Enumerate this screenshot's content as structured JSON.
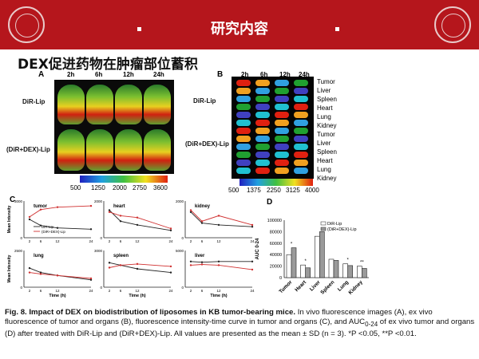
{
  "header": {
    "title": "研究内容",
    "bg_color": "#b5161c"
  },
  "subtitle": "DEX促进药物在肿瘤部位蓄积",
  "panel_a": {
    "letter": "A",
    "times": [
      "2h",
      "6h",
      "12h",
      "24h"
    ],
    "rows": [
      "DiR-Lip",
      "(DiR+DEX)-Lip"
    ],
    "colorbar_ticks": [
      "500",
      "1250",
      "2000",
      "2750",
      "3600"
    ]
  },
  "panel_b": {
    "letter": "B",
    "times": [
      "2h",
      "6h",
      "12h",
      "24h"
    ],
    "rows": [
      "DiR-Lip",
      "(DiR+DEX)-Lip"
    ],
    "organs": [
      "Tumor",
      "Liver",
      "Spleen",
      "Heart",
      "Lung",
      "Kidney"
    ],
    "colorbar_ticks": [
      "500",
      "1375",
      "2250",
      "3125",
      "4000"
    ]
  },
  "panel_c": {
    "letter": "C",
    "ylabel": "Mean Intensity",
    "xlabel": "Time (h)",
    "legend": [
      "DiR-Lip",
      "(DiR+DEX)-Lip"
    ]
  },
  "panel_d": {
    "letter": "D"
  },
  "chart_data": [
    {
      "type": "line",
      "title": "tumor",
      "x": [
        2,
        6,
        12,
        24
      ],
      "series": [
        {
          "name": "DiR-Lip",
          "values": [
            1500,
            1000,
            800,
            700
          ]
        },
        {
          "name": "(DiR+DEX)-Lip",
          "values": [
            1700,
            2300,
            2500,
            2600
          ]
        }
      ],
      "ylim": [
        0,
        3000
      ],
      "xlabel": "Time (h)",
      "ylabel": "Mean Intensity"
    },
    {
      "type": "line",
      "title": "heart",
      "x": [
        2,
        6,
        12,
        24
      ],
      "series": [
        {
          "name": "DiR-Lip",
          "values": [
            1500,
            900,
            700,
            400
          ]
        },
        {
          "name": "(DiR+DEX)-Lip",
          "values": [
            1400,
            1200,
            1100,
            500
          ]
        }
      ],
      "ylim": [
        0,
        2000
      ],
      "xlabel": "Time (h)",
      "ylabel": ""
    },
    {
      "type": "line",
      "title": "kidney",
      "x": [
        2,
        6,
        12,
        24
      ],
      "series": [
        {
          "name": "DiR-Lip",
          "values": [
            1400,
            800,
            700,
            600
          ]
        },
        {
          "name": "(DiR+DEX)-Lip",
          "values": [
            1500,
            900,
            1200,
            700
          ]
        }
      ],
      "ylim": [
        0,
        2000
      ],
      "xlabel": "Time (h)",
      "ylabel": ""
    },
    {
      "type": "line",
      "title": "lung",
      "x": [
        2,
        6,
        12,
        24
      ],
      "series": [
        {
          "name": "DiR-Lip",
          "values": [
            1300,
            1000,
            800,
            500
          ]
        },
        {
          "name": "(DiR+DEX)-Lip",
          "values": [
            1000,
            900,
            800,
            600
          ]
        }
      ],
      "ylim": [
        0,
        2500
      ],
      "xlabel": "Time (h)",
      "ylabel": "Mean Intensity"
    },
    {
      "type": "line",
      "title": "spleen",
      "x": [
        2,
        6,
        12,
        24
      ],
      "series": [
        {
          "name": "DiR-Lip",
          "values": [
            2000,
            1800,
            1500,
            1200
          ]
        },
        {
          "name": "(DiR+DEX)-Lip",
          "values": [
            1600,
            1800,
            1900,
            1700
          ]
        }
      ],
      "ylim": [
        0,
        3000
      ],
      "xlabel": "Time (h)",
      "ylabel": ""
    },
    {
      "type": "line",
      "title": "liver",
      "x": [
        2,
        6,
        12,
        24
      ],
      "series": [
        {
          "name": "DiR-Lip",
          "values": [
            3500,
            3400,
            3500,
            3500
          ]
        },
        {
          "name": "(DiR+DEX)-Lip",
          "values": [
            3000,
            3100,
            3000,
            2400
          ]
        }
      ],
      "ylim": [
        0,
        5000
      ],
      "xlabel": "Time (h)",
      "ylabel": ""
    },
    {
      "type": "bar",
      "categories": [
        "Tumor",
        "Heart",
        "Liver",
        "Spleen",
        "Lung",
        "Kidney"
      ],
      "series": [
        {
          "name": "DiR-Lip",
          "values": [
            40000,
            22000,
            72000,
            32000,
            24000,
            20000
          ]
        },
        {
          "name": "(DiR+DEX)-Lip",
          "values": [
            52000,
            17000,
            80000,
            30000,
            21000,
            16000
          ]
        }
      ],
      "ylim": [
        0,
        100000
      ],
      "ylabel": "AUC 0-24",
      "yticks": [
        "0",
        "20000",
        "40000",
        "60000",
        "80000",
        "100000"
      ],
      "significance": [
        "*",
        "*",
        "",
        "",
        "*",
        "**"
      ]
    }
  ],
  "caption": {
    "bold": "Fig. 8. Impact of DEX on biodistribution of liposomes in KB tumor-bearing mice.",
    "p1": " In vivo fluorescence images (A), ex vivo fluorescence of tumor and organs (B), fluorescence intensity-time curve in tumor and organs (C), and AUC",
    "sub": "0-24",
    "p2": " of ex vivo tumor and organs (D) after treated with DiR-Lip and (DiR+DEX)-Lip. All values are presented as the mean ± SD (n = 3). *P <0.05, **P <0.01."
  }
}
